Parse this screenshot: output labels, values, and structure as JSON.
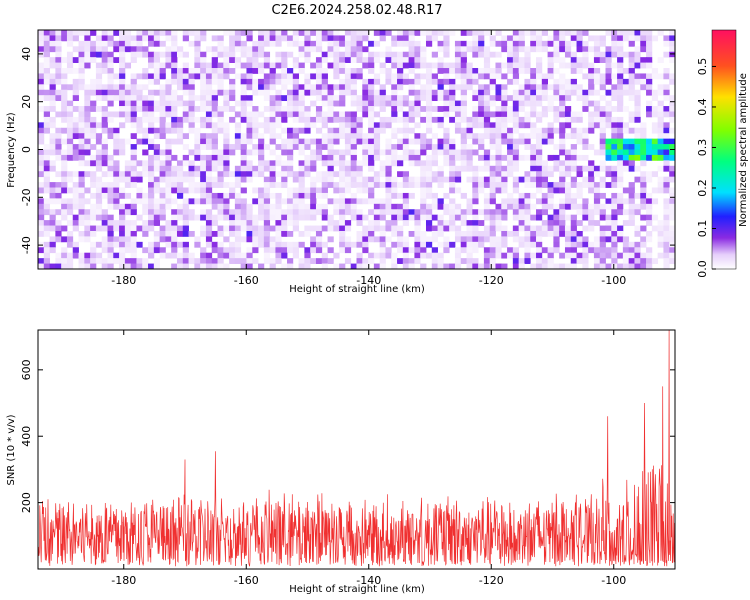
{
  "title": "C2E6.2024.258.02.48.R17",
  "chart_data": [
    {
      "type": "heatmap",
      "name": "spectrogram",
      "xlabel": "Height of straight line (km)",
      "ylabel": "Frequency (Hz)",
      "xlim": [
        -194,
        -90
      ],
      "ylim": [
        -50,
        50
      ],
      "xticks": [
        -180,
        -160,
        -140,
        -120,
        -100
      ],
      "yticks": [
        -40,
        -20,
        0,
        20,
        40
      ],
      "xtick_labels": [
        "-180",
        "-160",
        "-140",
        "-120",
        "-100"
      ],
      "ytick_labels": [
        "-40",
        "-20",
        "0",
        "20",
        "40"
      ],
      "colorbar": {
        "label": "Normalized spectral amplitude",
        "range": [
          0.0,
          0.59
        ],
        "ticks": [
          0.0,
          0.1,
          0.2,
          0.3,
          0.4,
          0.5
        ],
        "tick_labels": [
          "0.0",
          "0.1",
          "0.2",
          "0.3",
          "0.4",
          "0.5"
        ]
      },
      "noise_level": 0.05,
      "signal_region": {
        "x_range": [
          -101,
          -90
        ],
        "y_range": [
          -5,
          4
        ],
        "peak_amplitude": 0.35
      }
    },
    {
      "type": "line",
      "name": "snr",
      "xlabel": "Height of straight line (km)",
      "ylabel": "SNR (10 * v/v)",
      "xlim": [
        -194,
        -90
      ],
      "ylim": [
        0,
        720
      ],
      "xticks": [
        -180,
        -160,
        -140,
        -120,
        -100
      ],
      "yticks": [
        200,
        400,
        600
      ],
      "xtick_labels": [
        "-180",
        "-160",
        "-140",
        "-120",
        "-100"
      ],
      "ytick_labels": [
        "200",
        "400",
        "600"
      ],
      "color": "#f03030",
      "baseline": 100,
      "typical_peak": 240,
      "spikes": [
        {
          "x": -165,
          "y": 355
        },
        {
          "x": -170,
          "y": 330
        },
        {
          "x": -101,
          "y": 460
        },
        {
          "x": -95,
          "y": 500
        },
        {
          "x": -92,
          "y": 550
        },
        {
          "x": -91,
          "y": 720
        }
      ]
    }
  ]
}
